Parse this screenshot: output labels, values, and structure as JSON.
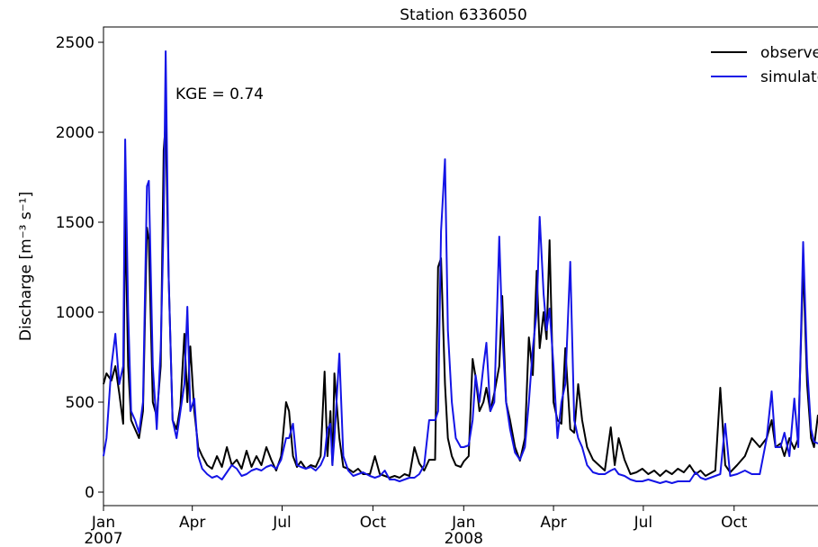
{
  "chart_data": {
    "type": "line",
    "title": "Station 6336050",
    "y_label": "Discharge [m⁻³ s⁻¹]",
    "annotation": "KGE = 0.74",
    "legend": "upper right",
    "xlim": [
      0,
      724
    ],
    "xticks": [
      {
        "value": 0,
        "label": "Jan"
      },
      {
        "value": 90,
        "label": "Apr"
      },
      {
        "value": 181,
        "label": "Jul"
      },
      {
        "value": 273,
        "label": "Oct"
      },
      {
        "value": 365,
        "label": "Jan"
      },
      {
        "value": 456,
        "label": "Apr"
      },
      {
        "value": 547,
        "label": "Jul"
      },
      {
        "value": 639,
        "label": "Oct"
      }
    ],
    "xtick_years": [
      {
        "value": 0,
        "label": "2007"
      },
      {
        "value": 365,
        "label": "2008"
      }
    ],
    "ylim": [
      -75,
      2585
    ],
    "yticks": [
      0,
      500,
      1000,
      1500,
      2000,
      2500
    ],
    "x": [
      0,
      3,
      8,
      12,
      16,
      20,
      22,
      25,
      28,
      32,
      36,
      40,
      44,
      46,
      50,
      54,
      58,
      61,
      63,
      66,
      70,
      74,
      78,
      82,
      85,
      88,
      92,
      96,
      100,
      105,
      110,
      115,
      120,
      125,
      130,
      135,
      140,
      145,
      150,
      155,
      160,
      165,
      170,
      175,
      180,
      185,
      188,
      192,
      196,
      200,
      205,
      210,
      215,
      220,
      224,
      227,
      230,
      232,
      234,
      239,
      243,
      248,
      253,
      258,
      263,
      270,
      275,
      280,
      285,
      290,
      295,
      300,
      305,
      310,
      315,
      320,
      325,
      330,
      336,
      339,
      342,
      346,
      349,
      353,
      357,
      362,
      365,
      370,
      374,
      377,
      381,
      385,
      388,
      392,
      396,
      401,
      404,
      408,
      412,
      417,
      422,
      427,
      431,
      435,
      439,
      442,
      446,
      449,
      452,
      456,
      460,
      464,
      468,
      473,
      477,
      481,
      485,
      490,
      496,
      502,
      508,
      514,
      518,
      522,
      528,
      534,
      540,
      546,
      552,
      558,
      564,
      570,
      576,
      582,
      588,
      594,
      600,
      605,
      610,
      620,
      625,
      630,
      635,
      642,
      650,
      657,
      665,
      672,
      677,
      681,
      686,
      690,
      695,
      700,
      704,
      709,
      713,
      717,
      720,
      724
    ],
    "series": [
      {
        "name": "observed",
        "color": "#000000",
        "values": [
          600,
          660,
          620,
          700,
          550,
          380,
          1580,
          700,
          400,
          350,
          300,
          450,
          1470,
          1400,
          500,
          420,
          700,
          1900,
          2050,
          1200,
          400,
          350,
          480,
          880,
          500,
          810,
          450,
          250,
          200,
          150,
          130,
          200,
          140,
          250,
          150,
          180,
          130,
          230,
          140,
          200,
          150,
          250,
          180,
          120,
          200,
          500,
          450,
          200,
          140,
          170,
          130,
          150,
          140,
          200,
          670,
          200,
          450,
          150,
          660,
          300,
          140,
          130,
          110,
          130,
          100,
          100,
          200,
          100,
          90,
          80,
          90,
          80,
          100,
          90,
          250,
          160,
          120,
          180,
          180,
          1250,
          1300,
          600,
          300,
          200,
          150,
          140,
          170,
          200,
          740,
          640,
          450,
          500,
          580,
          450,
          550,
          700,
          1090,
          500,
          400,
          250,
          175,
          300,
          860,
          650,
          1230,
          800,
          1000,
          850,
          1400,
          500,
          400,
          380,
          800,
          350,
          330,
          600,
          400,
          250,
          180,
          150,
          120,
          360,
          150,
          300,
          180,
          100,
          110,
          130,
          100,
          120,
          90,
          120,
          100,
          130,
          110,
          150,
          100,
          120,
          90,
          120,
          580,
          150,
          110,
          150,
          200,
          300,
          250,
          300,
          400,
          250,
          270,
          200,
          300,
          240,
          300,
          1270,
          600,
          300,
          250,
          430
        ]
      },
      {
        "name": "simulated",
        "color": "#1414e6",
        "values": [
          200,
          300,
          700,
          880,
          600,
          700,
          1960,
          1000,
          450,
          400,
          330,
          500,
          1700,
          1730,
          700,
          350,
          800,
          1500,
          2450,
          1200,
          400,
          300,
          450,
          600,
          1030,
          450,
          520,
          200,
          130,
          100,
          80,
          90,
          70,
          110,
          150,
          130,
          90,
          100,
          120,
          130,
          120,
          140,
          150,
          130,
          180,
          300,
          300,
          380,
          150,
          140,
          130,
          140,
          120,
          150,
          200,
          350,
          380,
          150,
          300,
          770,
          200,
          120,
          90,
          100,
          110,
          90,
          80,
          90,
          120,
          70,
          70,
          60,
          70,
          80,
          80,
          100,
          150,
          400,
          400,
          450,
          1450,
          1850,
          900,
          500,
          300,
          250,
          250,
          260,
          400,
          650,
          500,
          700,
          830,
          450,
          500,
          1420,
          900,
          500,
          350,
          220,
          180,
          250,
          500,
          800,
          1000,
          1530,
          1100,
          900,
          1020,
          700,
          300,
          500,
          600,
          1280,
          400,
          300,
          250,
          150,
          110,
          100,
          100,
          120,
          130,
          100,
          90,
          70,
          60,
          60,
          70,
          60,
          50,
          60,
          50,
          60,
          60,
          60,
          110,
          80,
          70,
          90,
          100,
          380,
          90,
          100,
          120,
          100,
          100,
          300,
          560,
          250,
          250,
          330,
          200,
          520,
          250,
          1390,
          700,
          350,
          280,
          270
        ]
      }
    ]
  }
}
